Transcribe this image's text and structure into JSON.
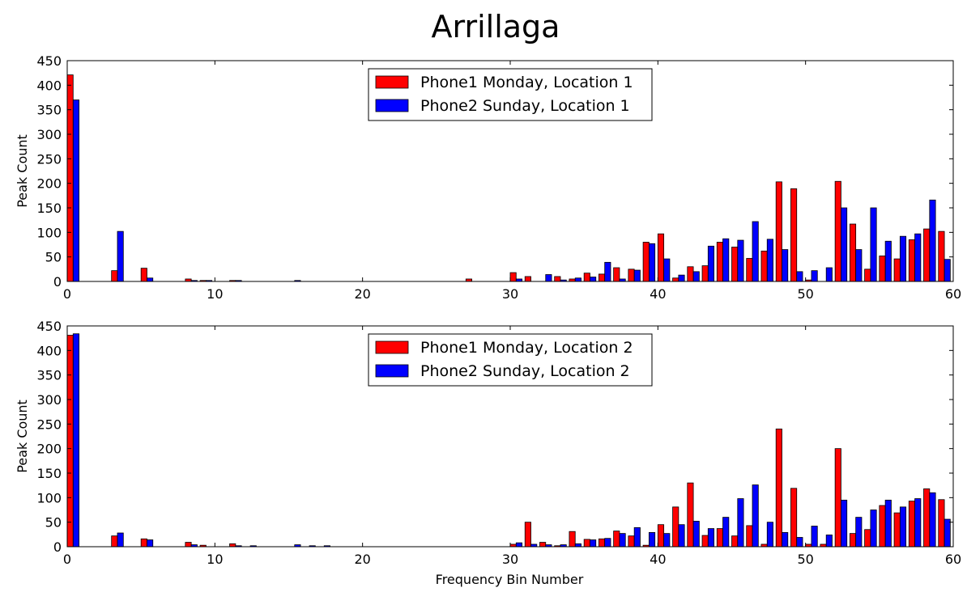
{
  "chart_data": {
    "type": "bar",
    "title": "Arrillaga",
    "xlabel": "Frequency Bin Number",
    "xlim": [
      0,
      60
    ],
    "xticks": [
      0,
      10,
      20,
      30,
      40,
      50,
      60
    ],
    "yticks": [
      0,
      50,
      100,
      150,
      200,
      250,
      300,
      350,
      400,
      450
    ],
    "legend_position": "top-center",
    "grid": false,
    "colors": {
      "series1": "#ff0000",
      "series2": "#0000ff"
    },
    "panels": [
      {
        "ylabel": "Peak Count",
        "ylim": [
          0,
          450
        ],
        "x": [
          0,
          1,
          2,
          3,
          4,
          5,
          6,
          7,
          8,
          9,
          10,
          11,
          12,
          13,
          14,
          15,
          16,
          17,
          18,
          19,
          20,
          21,
          22,
          23,
          24,
          25,
          26,
          27,
          28,
          29,
          30,
          31,
          32,
          33,
          34,
          35,
          36,
          37,
          38,
          39,
          40,
          41,
          42,
          43,
          44,
          45,
          46,
          47,
          48,
          49,
          50,
          51,
          52,
          53,
          54,
          55,
          56,
          57,
          58,
          59
        ],
        "series": [
          {
            "name": "Phone1 Monday, Location 1",
            "color": "#ff0000",
            "values": [
              421,
              0,
              0,
              22,
              0,
              27,
              0,
              0,
              5,
              2,
              0,
              2,
              0,
              0,
              0,
              0,
              0,
              0,
              0,
              0,
              0,
              0,
              0,
              0,
              0,
              0,
              0,
              5,
              0,
              0,
              18,
              10,
              0,
              10,
              5,
              17,
              15,
              28,
              25,
              80,
              97,
              7,
              30,
              32,
              80,
              70,
              47,
              62,
              203,
              189,
              3,
              0,
              204,
              117,
              25,
              52,
              46,
              85,
              107,
              102
            ]
          },
          {
            "name": "Phone2 Sunday, Location 1",
            "color": "#0000ff",
            "values": [
              370,
              0,
              0,
              102,
              0,
              7,
              0,
              0,
              2,
              2,
              0,
              2,
              0,
              0,
              0,
              2,
              0,
              0,
              0,
              0,
              0,
              0,
              0,
              0,
              0,
              0,
              0,
              0,
              0,
              0,
              5,
              0,
              14,
              3,
              7,
              9,
              39,
              5,
              23,
              77,
              46,
              13,
              20,
              72,
              87,
              84,
              122,
              86,
              65,
              20,
              22,
              28,
              150,
              65,
              150,
              82,
              92,
              97,
              166,
              45
            ]
          }
        ]
      },
      {
        "ylabel": "Peak Count",
        "ylim": [
          0,
          450
        ],
        "x": [
          0,
          1,
          2,
          3,
          4,
          5,
          6,
          7,
          8,
          9,
          10,
          11,
          12,
          13,
          14,
          15,
          16,
          17,
          18,
          19,
          20,
          21,
          22,
          23,
          24,
          25,
          26,
          27,
          28,
          29,
          30,
          31,
          32,
          33,
          34,
          35,
          36,
          37,
          38,
          39,
          40,
          41,
          42,
          43,
          44,
          45,
          46,
          47,
          48,
          49,
          50,
          51,
          52,
          53,
          54,
          55,
          56,
          57,
          58,
          59
        ],
        "series": [
          {
            "name": "Phone1 Monday, Location 2",
            "color": "#ff0000",
            "values": [
              431,
              0,
              0,
              22,
              0,
              16,
              0,
              0,
              9,
              3,
              0,
              6,
              0,
              0,
              0,
              0,
              0,
              0,
              0,
              0,
              0,
              0,
              0,
              0,
              0,
              0,
              0,
              0,
              0,
              0,
              5,
              50,
              9,
              2,
              31,
              15,
              16,
              32,
              22,
              3,
              45,
              81,
              130,
              23,
              37,
              22,
              43,
              5,
              240,
              119,
              5,
              5,
              200,
              27,
              35,
              84,
              69,
              93,
              118,
              96
            ]
          },
          {
            "name": "Phone2 Sunday, Location 2",
            "color": "#0000ff",
            "values": [
              434,
              0,
              0,
              28,
              0,
              14,
              0,
              0,
              4,
              0,
              0,
              2,
              2,
              0,
              0,
              4,
              2,
              2,
              0,
              0,
              0,
              0,
              0,
              0,
              0,
              0,
              0,
              0,
              0,
              0,
              8,
              5,
              4,
              4,
              6,
              14,
              17,
              27,
              39,
              29,
              27,
              45,
              52,
              37,
              60,
              98,
              126,
              50,
              29,
              19,
              42,
              24,
              95,
              60,
              75,
              95,
              81,
              98,
              110,
              56
            ]
          }
        ]
      }
    ]
  }
}
